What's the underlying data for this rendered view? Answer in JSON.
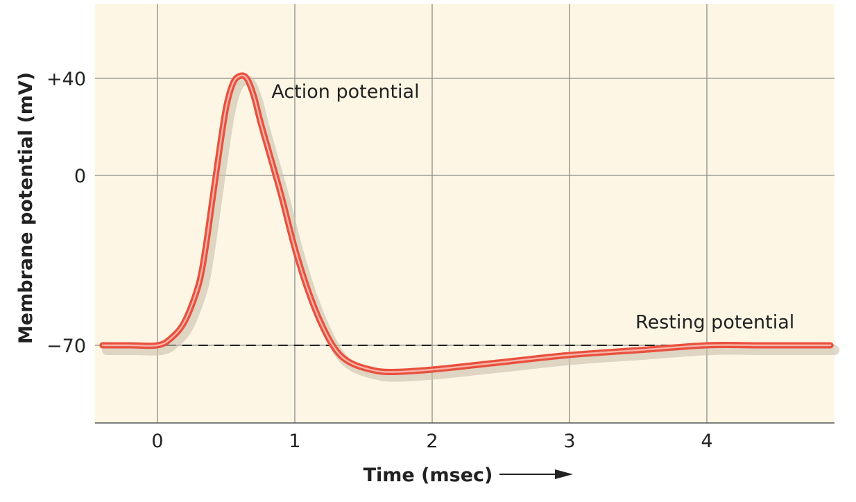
{
  "chart_data": {
    "type": "line",
    "xlabel": "Time (msec)",
    "ylabel": "Membrane potential (mV)",
    "xlim": [
      -0.4,
      4.9
    ],
    "ylim": [
      -102,
      70
    ],
    "x_ticks": [
      0,
      1,
      2,
      3,
      4
    ],
    "x_tick_labels": [
      "0",
      "1",
      "2",
      "3",
      "4"
    ],
    "y_ticks": [
      40,
      0,
      -70
    ],
    "y_tick_labels": [
      "+40",
      "0",
      "−70"
    ],
    "grid": true,
    "resting_level": -70,
    "series": [
      {
        "x": [
          -0.4,
          -0.2,
          0,
          0.1,
          0.2,
          0.3,
          0.35,
          0.4,
          0.45,
          0.5,
          0.55,
          0.6,
          0.65,
          0.7,
          0.75,
          0.8,
          0.9,
          1.0,
          1.1,
          1.2,
          1.3,
          1.4,
          1.55,
          1.7,
          2.0,
          2.5,
          3.0,
          3.5,
          4.0,
          4.4,
          4.9
        ],
        "y": [
          -70,
          -70,
          -70,
          -67,
          -60,
          -45,
          -30,
          -10,
          10,
          28,
          38,
          41,
          40,
          33,
          22,
          12,
          -8,
          -30,
          -48,
          -62,
          -72,
          -77,
          -80,
          -81,
          -80,
          -77,
          -74,
          -72,
          -70,
          -70,
          -70
        ]
      }
    ],
    "annotations": [
      {
        "text": "Action potential",
        "x": 0.83,
        "y": 32
      },
      {
        "text": "Resting potential",
        "x": 3.48,
        "y": -63
      }
    ],
    "colors": {
      "background": "#fdf6e4",
      "grid": "#8c8c8c",
      "trace": "#e9503e",
      "trace_highlight": "#f7b5a8",
      "shadow": "#c9bfae",
      "resting_dash": "#222222"
    }
  }
}
